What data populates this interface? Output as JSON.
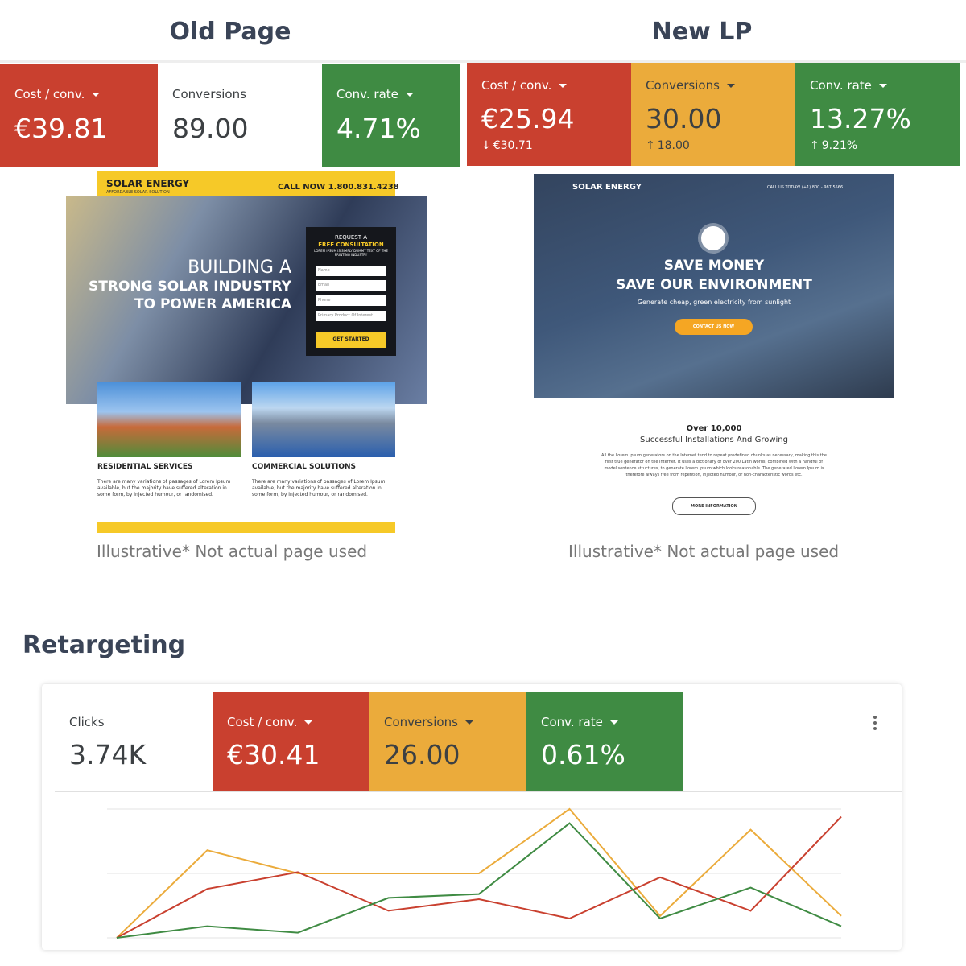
{
  "old_page": {
    "title": "Old Page",
    "metrics": [
      {
        "label": "Cost / conv.",
        "value": "€39.81"
      },
      {
        "label": "Conversions",
        "value": "89.00"
      },
      {
        "label": "Conv. rate",
        "value": "4.71%"
      }
    ],
    "mockup": {
      "brand": "SOLAR ENERGY",
      "tagline": "AFFORDABLE SOLAR SOLUTION",
      "call": "CALL NOW 1.800.831.4238",
      "headline": [
        "BUILDING A",
        "STRONG SOLAR INDUSTRY",
        "TO POWER AMERICA"
      ],
      "form_title": [
        "REQUEST A",
        "FREE CONSULTATION"
      ],
      "form_text": "LOREM IPSUM IS SIMPLY DUMMY TEXT OF THE PRINTING INDUSTRY",
      "fields": [
        "Name",
        "Email",
        "Phone",
        "Primary Product Of Interest"
      ],
      "button": "GET STARTED",
      "sections": [
        {
          "title": "RESIDENTIAL SERVICES",
          "text": "There are many variations of passages of Lorem Ipsum available, but the majority have suffered alteration in some form, by injected humour, or randomised."
        },
        {
          "title": "COMMERCIAL SOLUTIONS",
          "text": "There are many variations of passages of Lorem Ipsum available, but the majority have suffered alteration in some form, by injected humour, or randomised."
        }
      ]
    },
    "caption": "Illustrative* Not actual  page used"
  },
  "new_lp": {
    "title": "New LP",
    "metrics": [
      {
        "label": "Cost / conv.",
        "value": "€25.94",
        "change": "€30.71"
      },
      {
        "label": "Conversions",
        "value": "30.00",
        "change": "18.00"
      },
      {
        "label": "Conv. rate",
        "value": "13.27%",
        "change": "9.21%"
      }
    ],
    "mockup": {
      "brand": "SOLAR ENERGY",
      "call": "CALL US TODAY! (+1) 800 - 987 5566",
      "headline": [
        "SAVE MONEY",
        "SAVE OUR ENVIRONMENT"
      ],
      "subline": "Generate cheap, green electricity from sunlight",
      "button": "CONTACT US NOW",
      "stat": "Over 10,000",
      "stat_text": "Successful Installations And Growing",
      "text": "All the Lorem Ipsum generators on the Internet tend to repeat predefined chunks as necessary, making this the first true generator on the Internet. It uses a dictionary of over 200 Latin words, combined with a handful of model sentence structures, to generate Lorem Ipsum which looks reasonable. The generated Lorem Ipsum is therefore always free from repetition, injected humour, or non-characteristic words etc.",
      "more": "MORE INFORMATION"
    },
    "caption": "Illustrative* Not actual  page used"
  },
  "retargeting": {
    "title": "Retargeting",
    "metrics": [
      {
        "label": "Clicks",
        "value": "3.74K"
      },
      {
        "label": "Cost / conv.",
        "value": "€30.41"
      },
      {
        "label": "Conversions",
        "value": "26.00"
      },
      {
        "label": "Conv. rate",
        "value": "0.61%"
      }
    ]
  },
  "chart_data": {
    "type": "line",
    "categories": [
      null,
      null,
      null,
      null,
      null,
      null,
      null,
      null,
      null
    ],
    "ylim": [
      0,
      100
    ],
    "series": [
      {
        "color": "#ebab3b",
        "values": [
          0,
          68,
          50,
          50,
          50,
          100,
          17,
          84,
          17
        ]
      },
      {
        "color": "#c9402f",
        "values": [
          0,
          38,
          51,
          21,
          30,
          15,
          47,
          21,
          94
        ]
      },
      {
        "color": "#3f8b43",
        "values": [
          0,
          9,
          4,
          31,
          34,
          89,
          15,
          39,
          9
        ]
      }
    ]
  }
}
